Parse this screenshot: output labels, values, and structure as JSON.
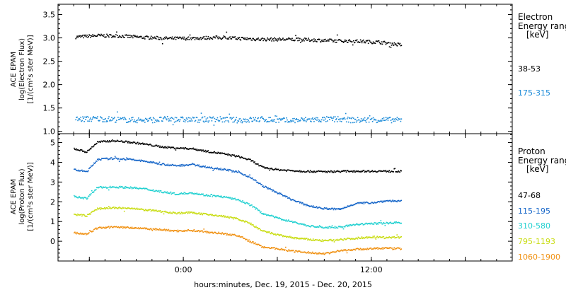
{
  "chart_data": [
    {
      "type": "scatter",
      "panel": "electron",
      "ylabel_lines": [
        "ACE EPAM",
        "log(Electron Flux)",
        "[1/(cm²s ster MeV)]"
      ],
      "ylim": [
        0.95,
        3.72
      ],
      "yticks": [
        1.0,
        1.5,
        2.0,
        2.5,
        3.0,
        3.5
      ],
      "ytick_labels": [
        "1.0",
        "1.5",
        "2.0",
        "2.5",
        "3.0",
        "3.5"
      ],
      "legend_title": [
        "Electron",
        "Energy ranges",
        "[keV]"
      ],
      "series": [
        {
          "name": "38-53",
          "color": "#000000",
          "x": [
            -6.9,
            -5.5,
            -4,
            -2.5,
            -1,
            0.5,
            2,
            3.5,
            5,
            6.5,
            8,
            9.5,
            11,
            12.5,
            13.9
          ],
          "y": [
            3.03,
            3.06,
            3.05,
            3.02,
            3.0,
            3.0,
            3.02,
            3.0,
            2.98,
            2.98,
            2.97,
            2.95,
            2.94,
            2.92,
            2.86
          ]
        },
        {
          "name": "175-315",
          "color": "#1a8ad8",
          "x": [
            -6.9,
            -5.5,
            -4,
            -2.5,
            -1,
            0.5,
            2,
            3.5,
            5,
            6.5,
            8,
            9.5,
            11,
            12.5,
            13.9
          ],
          "y": [
            1.27,
            1.28,
            1.26,
            1.25,
            1.27,
            1.26,
            1.27,
            1.25,
            1.27,
            1.24,
            1.26,
            1.27,
            1.25,
            1.26,
            1.25
          ]
        }
      ]
    },
    {
      "type": "scatter",
      "panel": "proton",
      "ylabel_lines": [
        "ACE EPAM",
        "log(Proton Flux)",
        "[1/(cm²s ster MeV)]"
      ],
      "ylim": [
        -1.0,
        5.45
      ],
      "yticks": [
        0,
        1,
        2,
        3,
        4,
        5
      ],
      "ytick_labels": [
        "0",
        "1",
        "2",
        "3",
        "4",
        "5"
      ],
      "legend_title": [
        "Proton",
        "Energy ranges",
        "[keV]"
      ],
      "series": [
        {
          "name": "47-68",
          "color": "#000000",
          "x": [
            -7,
            -6.2,
            -5.5,
            -4.5,
            -3.5,
            -2.5,
            -1.5,
            -0.5,
            0.5,
            1.5,
            2.5,
            3.5,
            4.3,
            5,
            6,
            7.5,
            9,
            10.5,
            12,
            13.9
          ],
          "y": [
            4.72,
            4.55,
            5.05,
            5.12,
            5.05,
            4.95,
            4.82,
            4.75,
            4.72,
            4.58,
            4.46,
            4.32,
            4.12,
            3.78,
            3.65,
            3.58,
            3.55,
            3.58,
            3.58,
            3.57
          ]
        },
        {
          "name": "115-195",
          "color": "#1565c8",
          "x": [
            -7,
            -6.2,
            -5.5,
            -4.5,
            -3.5,
            -2.5,
            -1.5,
            -0.5,
            0.5,
            1.5,
            2.5,
            3.5,
            4.3,
            5,
            6,
            7,
            8,
            9,
            10,
            11,
            12,
            13,
            13.9
          ],
          "y": [
            3.65,
            3.55,
            4.18,
            4.22,
            4.18,
            4.08,
            3.95,
            3.85,
            3.92,
            3.78,
            3.68,
            3.52,
            3.25,
            2.85,
            2.48,
            2.1,
            1.82,
            1.68,
            1.65,
            1.95,
            1.98,
            2.08,
            2.05
          ]
        },
        {
          "name": "310-580",
          "color": "#20d0d0",
          "x": [
            -7,
            -6.2,
            -5.5,
            -4.5,
            -3.5,
            -2.5,
            -1.5,
            -0.5,
            0.5,
            1.5,
            2.5,
            3.5,
            4.3,
            5,
            6,
            7,
            8,
            9,
            10,
            11,
            12,
            13,
            13.9
          ],
          "y": [
            2.3,
            2.2,
            2.75,
            2.78,
            2.75,
            2.68,
            2.55,
            2.42,
            2.48,
            2.35,
            2.28,
            2.12,
            1.85,
            1.45,
            1.2,
            1.0,
            0.8,
            0.72,
            0.75,
            0.88,
            0.92,
            0.95,
            0.98
          ]
        },
        {
          "name": "795-1193",
          "color": "#c8dc10",
          "x": [
            -7,
            -6.2,
            -5.5,
            -4.5,
            -3.5,
            -2.5,
            -1.5,
            -0.5,
            0.5,
            1.5,
            2.5,
            3.5,
            4.3,
            5,
            6,
            7,
            8,
            9,
            10,
            11,
            12,
            13,
            13.9
          ],
          "y": [
            1.38,
            1.32,
            1.68,
            1.72,
            1.7,
            1.62,
            1.55,
            1.45,
            1.48,
            1.38,
            1.3,
            1.15,
            0.9,
            0.55,
            0.35,
            0.2,
            0.12,
            0.05,
            0.12,
            0.18,
            0.25,
            0.22,
            0.22
          ]
        },
        {
          "name": "1060-1900",
          "color": "#f09010",
          "x": [
            -7,
            -6.2,
            -5.5,
            -4.5,
            -3.5,
            -2.5,
            -1.5,
            -0.5,
            0.5,
            1.5,
            2.5,
            3.5,
            4.3,
            5,
            6,
            7,
            8,
            9,
            10,
            11,
            12,
            13,
            13.9
          ],
          "y": [
            0.45,
            0.4,
            0.7,
            0.75,
            0.72,
            0.68,
            0.62,
            0.55,
            0.58,
            0.5,
            0.42,
            0.3,
            0.0,
            -0.25,
            -0.35,
            -0.48,
            -0.55,
            -0.6,
            -0.45,
            -0.38,
            -0.35,
            -0.32,
            -0.35
          ]
        }
      ]
    }
  ],
  "xaxis": {
    "xlim": [
      -8,
      21
    ],
    "ticks": [
      -6,
      0,
      6,
      12,
      18
    ],
    "tick_labels": [
      "",
      "0:00",
      "",
      "12:00",
      ""
    ],
    "xlabel": "hours:minutes, Dec. 19, 2015 - Dec. 20, 2015"
  }
}
